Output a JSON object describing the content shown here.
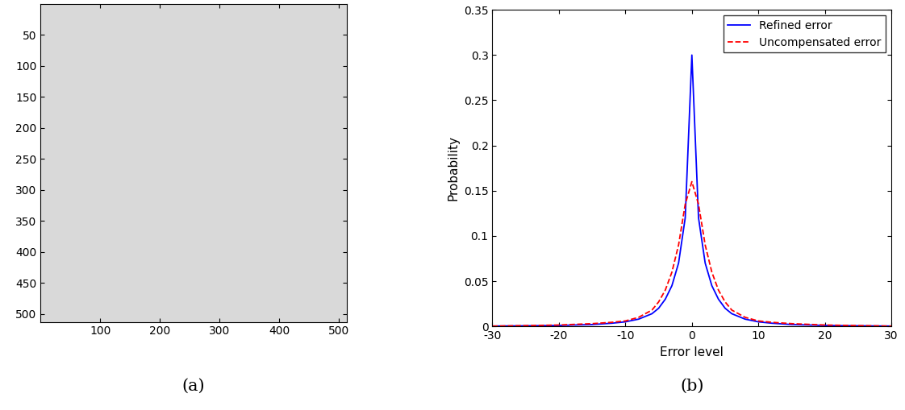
{
  "chart_data": [
    {
      "type": "image",
      "caption": "(a)",
      "xlim": [
        0.5,
        512.5
      ],
      "ylim": [
        512.5,
        0.5
      ],
      "xticks": [
        100,
        200,
        300,
        400,
        500
      ],
      "yticks": [
        50,
        100,
        150,
        200,
        250,
        300,
        350,
        400,
        450,
        500
      ]
    },
    {
      "type": "line",
      "caption": "(b)",
      "x_label": "Error level",
      "y_label": "Probability",
      "x": [
        -30,
        -25,
        -20,
        -15,
        -12,
        -10,
        -8,
        -6,
        -5,
        -4,
        -3,
        -2,
        -1,
        0,
        1,
        2,
        3,
        4,
        5,
        6,
        8,
        10,
        12,
        15,
        20,
        25,
        30
      ],
      "series": [
        {
          "name": "Refined error",
          "color": "#0000ff",
          "line_style": "solid",
          "values": [
            0.0003,
            0.0006,
            0.001,
            0.002,
            0.0035,
            0.005,
            0.008,
            0.014,
            0.02,
            0.03,
            0.045,
            0.07,
            0.12,
            0.3,
            0.12,
            0.07,
            0.045,
            0.03,
            0.02,
            0.014,
            0.008,
            0.005,
            0.0035,
            0.002,
            0.001,
            0.0006,
            0.0003
          ]
        },
        {
          "name": "Uncompensated error",
          "color": "#ff0000",
          "line_style": "dashed",
          "values": [
            0.0003,
            0.0008,
            0.0015,
            0.003,
            0.0045,
            0.006,
            0.01,
            0.018,
            0.027,
            0.04,
            0.06,
            0.09,
            0.135,
            0.16,
            0.135,
            0.09,
            0.06,
            0.04,
            0.027,
            0.018,
            0.01,
            0.006,
            0.0045,
            0.003,
            0.0015,
            0.0008,
            0.0003
          ]
        }
      ],
      "xlim": [
        -30,
        30
      ],
      "xticks": [
        -30,
        -20,
        -10,
        0,
        10,
        20,
        30
      ],
      "ylim": [
        0,
        0.35
      ],
      "yticks": [
        0,
        0.05,
        0.1,
        0.15,
        0.2,
        0.25,
        0.3,
        0.35
      ],
      "legend": "upper right"
    }
  ]
}
